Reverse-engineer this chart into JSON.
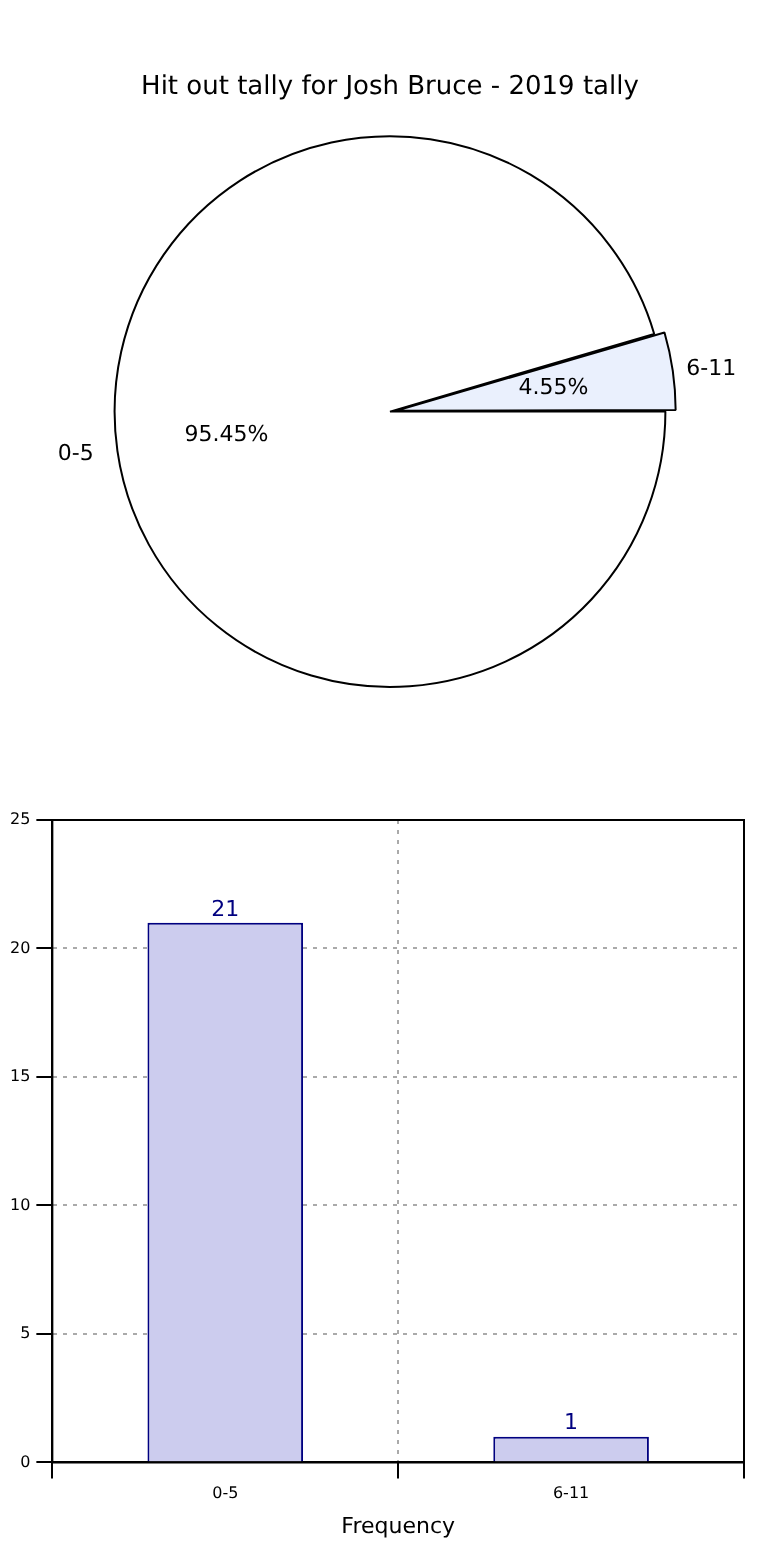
{
  "chart_data": [
    {
      "type": "pie",
      "title": "Hit out tally for Josh Bruce - 2019 tally",
      "categories": [
        "0-5",
        "6-11"
      ],
      "values": [
        95.45,
        4.55
      ],
      "colors": [
        "#ffffff",
        "#eaf0fd"
      ],
      "value_labels": [
        "95.45%",
        "4.55%"
      ],
      "legend": false
    },
    {
      "type": "bar",
      "categories": [
        "0-5",
        "6-11"
      ],
      "values": [
        21,
        1
      ],
      "color": "#ccccee",
      "xlabel": "Frequency",
      "ylim": [
        0,
        25
      ],
      "yticks": [
        0,
        5,
        10,
        15,
        20,
        25
      ],
      "grid": true,
      "data_labels": true,
      "legend": false
    }
  ]
}
